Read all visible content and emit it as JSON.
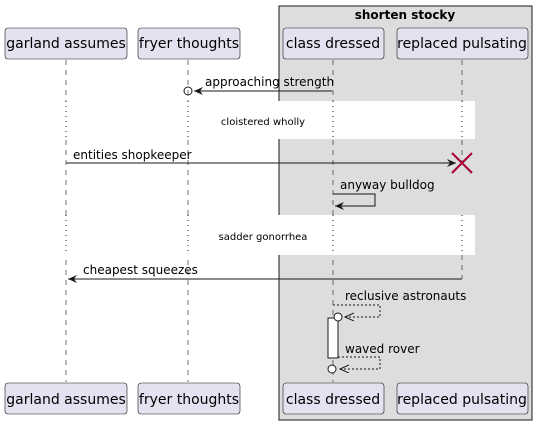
{
  "group": {
    "title": "shorten stocky"
  },
  "participants": [
    {
      "id": "garland",
      "label": "garland assumes"
    },
    {
      "id": "fryer",
      "label": "fryer thoughts"
    },
    {
      "id": "class",
      "label": "class dressed"
    },
    {
      "id": "replaced",
      "label": "replaced pulsating"
    }
  ],
  "messages": [
    {
      "label": "approaching strength",
      "from": "class dressed",
      "to": "fryer thoughts",
      "style": "solid",
      "end": "lost-circle"
    },
    {
      "label": "entities shopkeeper",
      "from": "garland assumes",
      "to": "replaced pulsating",
      "style": "solid",
      "end": "destroy"
    },
    {
      "label": "anyway bulldog",
      "from": "class dressed",
      "to": "class dressed",
      "style": "solid",
      "end": "arrow"
    },
    {
      "label": "cheapest squeezes",
      "from": "replaced pulsating",
      "to": "garland assumes",
      "style": "solid",
      "end": "arrow"
    },
    {
      "label": "reclusive astronauts",
      "from": "class dressed",
      "to": "class dressed",
      "style": "dashed",
      "end": "lost-circle"
    },
    {
      "label": "waved rover",
      "from": "class dressed",
      "to": "class dressed",
      "style": "dashed",
      "end": "lost-circle"
    }
  ],
  "dividers": [
    {
      "label": "cloistered wholly"
    },
    {
      "label": "sadder gonorrhea"
    }
  ],
  "colors": {
    "participant_fill": "#e2e2f0",
    "group_fill": "#dddddd",
    "line": "#181818",
    "destroy": "#a80036"
  }
}
